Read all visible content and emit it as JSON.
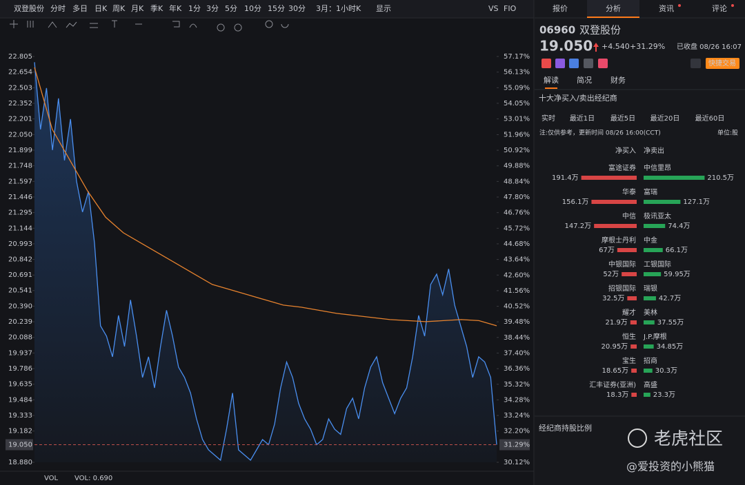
{
  "toolbar": {
    "stock": "双登股份",
    "periods": [
      "分时",
      "多日",
      "日K",
      "周K",
      "月K",
      "季K",
      "年K",
      "1分",
      "3分",
      "5分",
      "10分",
      "15分",
      "30分"
    ],
    "range": "3月：1小时K",
    "display": "显示",
    "extras": [
      "VS",
      "FIO"
    ]
  },
  "chart_data": {
    "type": "line",
    "series": [
      {
        "color": "#4a8ff0",
        "values": [
          22.75,
          22.1,
          22.5,
          21.9,
          22.4,
          21.8,
          22.2,
          21.6,
          21.3,
          21.5,
          21.0,
          20.2,
          20.1,
          19.9,
          20.3,
          20.0,
          20.45,
          20.1,
          19.7,
          19.9,
          19.6,
          20.0,
          20.35,
          20.1,
          19.8,
          19.7,
          19.55,
          19.3,
          19.1,
          19.0,
          18.95,
          18.9,
          19.2,
          19.55,
          19.0,
          18.95,
          18.9,
          19.0,
          19.1,
          19.05,
          19.25,
          19.6,
          19.85,
          19.7,
          19.45,
          19.3,
          19.2,
          19.05,
          19.1,
          19.3,
          19.2,
          19.15,
          19.4,
          19.5,
          19.3,
          19.6,
          19.8,
          19.9,
          19.65,
          19.5,
          19.35,
          19.5,
          19.6,
          19.9,
          20.3,
          20.1,
          20.6,
          20.7,
          20.5,
          20.75,
          20.4,
          20.2,
          20.0,
          19.7,
          19.9,
          19.85,
          19.7,
          19.05
        ]
      },
      {
        "color": "#e8832e",
        "values": [
          22.7,
          22.1,
          21.8,
          21.5,
          21.25,
          21.1,
          21.0,
          20.9,
          20.8,
          20.7,
          20.6,
          20.55,
          20.5,
          20.45,
          20.4,
          20.38,
          20.35,
          20.32,
          20.3,
          20.28,
          20.26,
          20.25,
          20.24,
          20.25,
          20.26,
          20.25,
          20.2
        ]
      }
    ],
    "ylim": [
      18.88,
      22.805
    ],
    "yticks": [
      {
        "value": 22.805,
        "label": "22.805"
      },
      {
        "value": 22.654,
        "label": "22.654"
      },
      {
        "value": 22.503,
        "label": "22.503"
      },
      {
        "value": 22.352,
        "label": "22.352"
      },
      {
        "value": 22.201,
        "label": "22.201"
      },
      {
        "value": 22.05,
        "label": "22.050"
      },
      {
        "value": 21.899,
        "label": "21.899"
      },
      {
        "value": 21.748,
        "label": "21.748"
      },
      {
        "value": 21.597,
        "label": "21.597"
      },
      {
        "value": 21.446,
        "label": "21.446"
      },
      {
        "value": 21.295,
        "label": "21.295"
      },
      {
        "value": 21.144,
        "label": "21.144"
      },
      {
        "value": 20.993,
        "label": "20.993"
      },
      {
        "value": 20.842,
        "label": "20.842"
      },
      {
        "value": 20.691,
        "label": "20.691"
      },
      {
        "value": 20.541,
        "label": "20.541"
      },
      {
        "value": 20.39,
        "label": "20.390"
      },
      {
        "value": 20.239,
        "label": "20.239"
      },
      {
        "value": 20.088,
        "label": "20.088"
      },
      {
        "value": 19.937,
        "label": "19.937"
      },
      {
        "value": 19.786,
        "label": "19.786"
      },
      {
        "value": 19.635,
        "label": "19.635"
      },
      {
        "value": 19.484,
        "label": "19.484"
      },
      {
        "value": 19.333,
        "label": "19.333"
      },
      {
        "value": 19.182,
        "label": "19.182"
      },
      {
        "value": 18.88,
        "label": "18.880"
      }
    ],
    "y2lim": [
      30.12,
      57.17
    ],
    "y2ticks": [
      {
        "value": 57.17,
        "label": "57.17%"
      },
      {
        "value": 56.13,
        "label": "56.13%"
      },
      {
        "value": 55.09,
        "label": "55.09%"
      },
      {
        "value": 54.05,
        "label": "54.05%"
      },
      {
        "value": 53.01,
        "label": "53.01%"
      },
      {
        "value": 51.96,
        "label": "51.96%"
      },
      {
        "value": 50.92,
        "label": "50.92%"
      },
      {
        "value": 49.88,
        "label": "49.88%"
      },
      {
        "value": 48.84,
        "label": "48.84%"
      },
      {
        "value": 47.8,
        "label": "47.80%"
      },
      {
        "value": 46.76,
        "label": "46.76%"
      },
      {
        "value": 45.72,
        "label": "45.72%"
      },
      {
        "value": 44.68,
        "label": "44.68%"
      },
      {
        "value": 43.64,
        "label": "43.64%"
      },
      {
        "value": 42.6,
        "label": "42.60%"
      },
      {
        "value": 41.56,
        "label": "41.56%"
      },
      {
        "value": 40.52,
        "label": "40.52%"
      },
      {
        "value": 39.48,
        "label": "39.48%"
      },
      {
        "value": 38.44,
        "label": "38.44%"
      },
      {
        "value": 37.4,
        "label": "37.40%"
      },
      {
        "value": 36.36,
        "label": "36.36%"
      },
      {
        "value": 35.32,
        "label": "35.32%"
      },
      {
        "value": 34.28,
        "label": "34.28%"
      },
      {
        "value": 33.24,
        "label": "33.24%"
      },
      {
        "value": 32.2,
        "label": "32.20%"
      },
      {
        "value": 30.12,
        "label": "30.12%"
      }
    ],
    "current_price": {
      "value": 19.05,
      "label": "19.050"
    },
    "current_pct": {
      "value": 31.29,
      "label": "31.29%"
    },
    "volume": {
      "label": "VOL",
      "value_label": "VOL: 0.690"
    }
  },
  "panel": {
    "tabs": [
      "报价",
      "分析",
      "资讯",
      "评论"
    ],
    "code": "06960",
    "name": "双登股份",
    "price": "19.050",
    "change": "+4.540",
    "change_pct": "+31.29%",
    "status": "已收盘 08/26 16:07",
    "trade": "快捷交易",
    "subtabs": [
      "解读",
      "简况",
      "财务"
    ],
    "section": "十大净买入/卖出经纪商",
    "periods": [
      "实时",
      "最近1日",
      "最近5日",
      "最近20日",
      "最近60日"
    ],
    "note": "注:仅供参考，更新时间 08/26 16:00(CCT)",
    "unit": "单位:股",
    "headers": [
      "净买入",
      "净卖出"
    ],
    "brokers": [
      {
        "buy": {
          "name": "富途证券",
          "value": 191.4,
          "label": "191.4万"
        },
        "sell": {
          "name": "中信里昂",
          "value": 210.5,
          "label": "210.5万"
        }
      },
      {
        "buy": {
          "name": "华泰",
          "value": 156.1,
          "label": "156.1万"
        },
        "sell": {
          "name": "富瑞",
          "value": 127.1,
          "label": "127.1万"
        }
      },
      {
        "buy": {
          "name": "中信",
          "value": 147.2,
          "label": "147.2万"
        },
        "sell": {
          "name": "极讯亚太",
          "value": 74.4,
          "label": "74.4万"
        }
      },
      {
        "buy": {
          "name": "摩根士丹利",
          "value": 67,
          "label": "67万"
        },
        "sell": {
          "name": "中金",
          "value": 66.1,
          "label": "66.1万"
        }
      },
      {
        "buy": {
          "name": "中银国际",
          "value": 52,
          "label": "52万"
        },
        "sell": {
          "name": "工银国际",
          "value": 59.95,
          "label": "59.95万"
        }
      },
      {
        "buy": {
          "name": "招银国际",
          "value": 32.5,
          "label": "32.5万"
        },
        "sell": {
          "name": "瑞银",
          "value": 42.7,
          "label": "42.7万"
        }
      },
      {
        "buy": {
          "name": "耀才",
          "value": 21.9,
          "label": "21.9万"
        },
        "sell": {
          "name": "美林",
          "value": 37.55,
          "label": "37.55万"
        }
      },
      {
        "buy": {
          "name": "恒生",
          "value": 20.95,
          "label": "20.95万"
        },
        "sell": {
          "name": "J.P.摩根",
          "value": 34.85,
          "label": "34.85万"
        }
      },
      {
        "buy": {
          "name": "宝生",
          "value": 18.65,
          "label": "18.65万"
        },
        "sell": {
          "name": "招商",
          "value": 30.3,
          "label": "30.3万"
        }
      },
      {
        "buy": {
          "name": "汇丰证券(亚洲)",
          "value": 18.3,
          "label": "18.3万"
        },
        "sell": {
          "name": "高盛",
          "value": 23.3,
          "label": "23.3万"
        }
      }
    ],
    "holding": "经纪商持股比例"
  },
  "watermark": {
    "brand": "老虎社区",
    "author": "@爱投资的小熊猫"
  }
}
